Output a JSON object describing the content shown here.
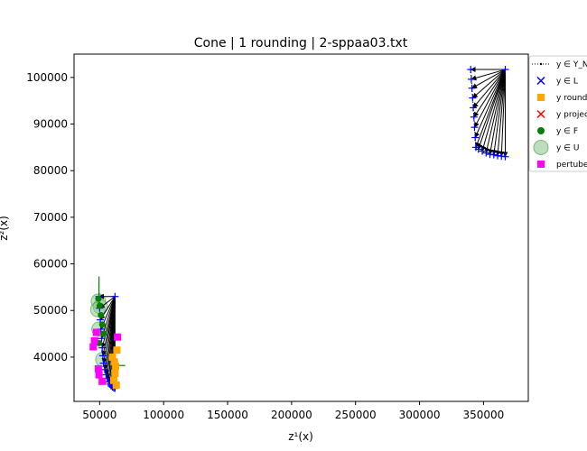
{
  "chart_data": {
    "type": "scatter",
    "title": "Cone | 1 rounding | 2-sppaa03.txt",
    "xlabel": "z¹(x)",
    "ylabel": "z²(x)",
    "xlim": [
      30000,
      385000
    ],
    "ylim": [
      30500,
      105000
    ],
    "xticks": [
      50000,
      100000,
      150000,
      200000,
      250000,
      300000,
      350000
    ],
    "xtick_labels": [
      "50000",
      "100000",
      "150000",
      "200000",
      "250000",
      "300000",
      "350000"
    ],
    "yticks": [
      40000,
      50000,
      60000,
      70000,
      80000,
      90000,
      100000
    ],
    "ytick_labels": [
      "40000",
      "50000",
      "60000",
      "70000",
      "80000",
      "90000",
      "100000"
    ],
    "grid": false,
    "legend_position": "right, outside top",
    "colors": {
      "frontier": "#0000ff",
      "rounded": "#ffa500",
      "projected": "#ff0000",
      "feasible": "#008000",
      "utopia": "#90c890",
      "perturbed": "#ff00ff",
      "cone_arrow": "#000000"
    },
    "legend": [
      {
        "label": "y ∈ Y_N",
        "marker": "dotted-line"
      },
      {
        "label": "y ∈ L",
        "marker": "x-blue"
      },
      {
        "label": "y rounded",
        "marker": "square-orange"
      },
      {
        "label": "y projected",
        "marker": "x-red"
      },
      {
        "label": "y ∈ F",
        "marker": "circle-green"
      },
      {
        "label": "y ∈ U",
        "marker": "big-circle-lightgreen"
      },
      {
        "label": "pertubed",
        "marker": "square-magenta"
      }
    ],
    "series": [
      {
        "name": "y ∈ Y_N (upper cluster)",
        "x": [
          367000,
          340000,
          340500,
          341000,
          341500,
          342000,
          342500,
          343000,
          343500,
          344000,
          346000,
          349000,
          352000,
          355000,
          358000,
          361000,
          364000,
          367000
        ],
        "y": [
          101700,
          101700,
          99600,
          97700,
          95600,
          93500,
          91500,
          89300,
          87100,
          85000,
          84600,
          84200,
          83800,
          83500,
          83400,
          83200,
          83100,
          83000
        ]
      },
      {
        "name": "y ∈ Y_N (lower cluster)",
        "x": [
          62000,
          49500,
          50000,
          50500,
          51000,
          51500,
          52000,
          52500,
          53000,
          54000,
          55000,
          56000,
          57000,
          58000,
          59000,
          60000,
          61000,
          62000
        ],
        "y": [
          53000,
          53000,
          50500,
          48000,
          46000,
          44000,
          42000,
          40300,
          38700,
          37300,
          36200,
          35400,
          34700,
          34200,
          33800,
          33600,
          33400,
          33300
        ]
      },
      {
        "name": "y rounded",
        "x": [
          61000,
          62000,
          63000,
          60000,
          61500,
          63500,
          62500
        ],
        "y": [
          35000,
          36500,
          34000,
          40000,
          39000,
          41500,
          38000
        ]
      },
      {
        "name": "y ∈ F",
        "x": [
          49000,
          50000,
          51000,
          52000,
          53000,
          49500,
          63000
        ],
        "y": [
          52500,
          51000,
          49000,
          47000,
          45000,
          43000,
          41500
        ]
      },
      {
        "name": "y ∈ U",
        "x": [
          49000,
          50500,
          48500,
          52500,
          49500
        ],
        "y": [
          52000,
          50800,
          50200,
          39500,
          46000
        ]
      },
      {
        "name": "pertubed",
        "x": [
          64000,
          45000,
          46000,
          47500,
          49000,
          49500,
          52000
        ],
        "y": [
          44300,
          42200,
          43500,
          45300,
          37500,
          36200,
          34800
        ]
      }
    ]
  }
}
